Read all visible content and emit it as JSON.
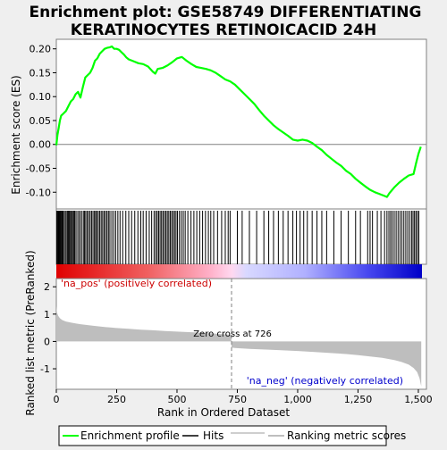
{
  "chart_data": {
    "type": "line",
    "title_line1": "Enrichment plot: GSE58749 DIFFERENTIATING",
    "title_line2": "KERATINOCYTES RETINOICACID 24H",
    "es_panel": {
      "ylabel": "Enrichment score (ES)",
      "ylim": [
        -0.135,
        0.22
      ],
      "yticks": [
        -0.1,
        -0.05,
        0.0,
        0.05,
        0.1,
        0.15,
        0.2
      ],
      "ytick_labels": [
        "-0.10",
        "-0.05",
        "0.00",
        "0.05",
        "0.10",
        "0.15",
        "0.20"
      ],
      "series": [
        {
          "name": "Enrichment profile",
          "color": "#00ff00",
          "x": [
            0,
            5,
            10,
            15,
            20,
            30,
            40,
            50,
            60,
            70,
            80,
            90,
            100,
            110,
            120,
            130,
            140,
            150,
            160,
            170,
            180,
            190,
            200,
            210,
            220,
            230,
            240,
            250,
            260,
            270,
            280,
            290,
            300,
            320,
            340,
            360,
            380,
            400,
            410,
            420,
            440,
            460,
            480,
            500,
            520,
            540,
            560,
            580,
            600,
            620,
            640,
            660,
            680,
            700,
            720,
            740,
            760,
            780,
            800,
            820,
            840,
            860,
            880,
            900,
            920,
            940,
            960,
            980,
            1000,
            1020,
            1040,
            1060,
            1080,
            1100,
            1120,
            1140,
            1160,
            1180,
            1200,
            1220,
            1240,
            1260,
            1280,
            1300,
            1320,
            1340,
            1360,
            1370,
            1380,
            1400,
            1420,
            1440,
            1460,
            1480,
            1490,
            1500,
            1510
          ],
          "y": [
            -0.002,
            0.02,
            0.035,
            0.05,
            0.06,
            0.065,
            0.07,
            0.08,
            0.09,
            0.095,
            0.105,
            0.11,
            0.098,
            0.12,
            0.14,
            0.145,
            0.15,
            0.16,
            0.175,
            0.18,
            0.19,
            0.195,
            0.2,
            0.202,
            0.203,
            0.205,
            0.2,
            0.2,
            0.198,
            0.193,
            0.188,
            0.182,
            0.178,
            0.174,
            0.17,
            0.168,
            0.163,
            0.152,
            0.148,
            0.158,
            0.16,
            0.165,
            0.172,
            0.18,
            0.183,
            0.175,
            0.168,
            0.162,
            0.16,
            0.158,
            0.155,
            0.15,
            0.143,
            0.136,
            0.132,
            0.125,
            0.115,
            0.105,
            0.095,
            0.085,
            0.072,
            0.06,
            0.05,
            0.04,
            0.032,
            0.025,
            0.018,
            0.01,
            0.008,
            0.01,
            0.008,
            0.003,
            -0.005,
            -0.012,
            -0.022,
            -0.03,
            -0.038,
            -0.045,
            -0.055,
            -0.062,
            -0.072,
            -0.08,
            -0.088,
            -0.095,
            -0.1,
            -0.104,
            -0.108,
            -0.11,
            -0.102,
            -0.09,
            -0.08,
            -0.072,
            -0.065,
            -0.062,
            -0.04,
            -0.02,
            -0.005
          ]
        }
      ]
    },
    "hits_panel": {
      "series_name": "Hits",
      "hit_ranks": [
        2,
        5,
        8,
        11,
        14,
        17,
        20,
        24,
        28,
        33,
        38,
        44,
        48,
        52,
        56,
        60,
        65,
        70,
        74,
        78,
        85,
        92,
        98,
        105,
        112,
        117,
        122,
        128,
        134,
        140,
        146,
        152,
        158,
        163,
        168,
        174,
        180,
        186,
        192,
        198,
        204,
        210,
        216,
        222,
        230,
        238,
        246,
        255,
        264,
        275,
        288,
        300,
        312,
        325,
        338,
        350,
        360,
        372,
        385,
        395,
        405,
        412,
        418,
        424,
        430,
        436,
        442,
        448,
        454,
        460,
        466,
        472,
        478,
        484,
        490,
        496,
        502,
        510,
        518,
        526,
        534,
        545,
        558,
        570,
        582,
        594,
        606,
        618,
        630,
        640,
        652,
        668,
        685,
        700,
        712,
        720,
        750,
        770,
        800,
        830,
        860,
        880,
        900,
        920,
        940,
        960,
        980,
        995,
        1010,
        1025,
        1040,
        1060,
        1080,
        1100,
        1120,
        1150,
        1180,
        1210,
        1240,
        1260,
        1290,
        1300,
        1310,
        1330,
        1345,
        1360,
        1370,
        1378,
        1385,
        1392,
        1400,
        1408,
        1416,
        1424,
        1432,
        1440,
        1448,
        1456,
        1464,
        1472,
        1478,
        1484,
        1490,
        1496,
        1502
      ]
    },
    "gradient_bar": {
      "pos_color": "#ff0000",
      "neg_color": "#0000ff",
      "zero_rank": 726
    },
    "metric_panel": {
      "ylabel": "Ranked list metric (PreRanked)",
      "ylim": [
        -1.75,
        2.3
      ],
      "yticks": [
        -1,
        0,
        1,
        2
      ],
      "ytick_labels": [
        "-1",
        "0",
        "1",
        "2"
      ],
      "series_name": "Ranking metric scores",
      "color": "#bebebe",
      "zero_cross_label": "Zero cross at 726",
      "pos_label": "'na_pos' (positively correlated)",
      "neg_label": "'na_neg' (negatively correlated)",
      "curve": {
        "x": [
          0,
          3,
          8,
          15,
          25,
          40,
          60,
          80,
          100,
          150,
          200,
          250,
          300,
          350,
          400,
          450,
          500,
          550,
          600,
          650,
          700,
          725,
          726,
          740,
          800,
          900,
          1000,
          1100,
          1200,
          1250,
          1300,
          1350,
          1400,
          1430,
          1460,
          1480,
          1495,
          1505,
          1512
        ],
        "y": [
          1.3,
          1.05,
          0.93,
          0.85,
          0.78,
          0.73,
          0.69,
          0.66,
          0.63,
          0.58,
          0.53,
          0.49,
          0.46,
          0.43,
          0.41,
          0.38,
          0.36,
          0.34,
          0.32,
          0.29,
          0.26,
          0.24,
          -0.22,
          -0.24,
          -0.27,
          -0.31,
          -0.35,
          -0.4,
          -0.46,
          -0.5,
          -0.55,
          -0.6,
          -0.68,
          -0.75,
          -0.85,
          -0.97,
          -1.12,
          -1.35,
          -1.65
        ]
      }
    },
    "x_axis": {
      "xlabel": "Rank in Ordered Dataset",
      "xlim": [
        0,
        1515
      ],
      "xticks": [
        0,
        250,
        500,
        750,
        1000,
        1250,
        1500
      ],
      "xtick_labels": [
        "0",
        "250",
        "500",
        "750",
        "1,000",
        "1,250",
        "1,500"
      ]
    },
    "legend": {
      "placement": "bottom",
      "items": [
        {
          "label": "Enrichment profile",
          "color": "#00ff00"
        },
        {
          "label": "Hits",
          "color": "#000000"
        },
        {
          "label": "Ranking metric scores",
          "color": "#bebebe"
        }
      ]
    }
  }
}
